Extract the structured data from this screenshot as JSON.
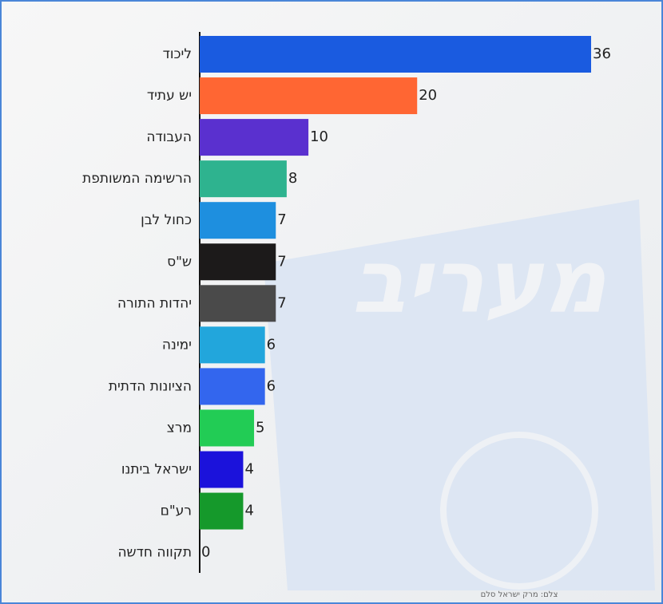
{
  "chart_data": {
    "type": "bar",
    "orientation": "horizontal",
    "categories": [
      "ליכוד",
      "יש עתיד",
      "העבודה",
      "הרשימה המשותפת",
      "כחול לבן",
      "ש\"ס",
      "יהדות התורה",
      "ימינה",
      "הציונות הדתית",
      "מרצ",
      "ישראל ביתנו",
      "רע\"ם",
      "תקווה חדשה"
    ],
    "values": [
      36,
      20,
      10,
      8,
      7,
      7,
      7,
      6,
      6,
      5,
      4,
      4,
      0
    ],
    "colors": [
      "#1a5be0",
      "#ff6633",
      "#5a30cf",
      "#2eb38f",
      "#1e8fdf",
      "#1c1a1a",
      "#4a4a4a",
      "#22a6dc",
      "#3366ee",
      "#22cc55",
      "#1b12db",
      "#15992b",
      "#3399cc"
    ],
    "watermark": "מעריב",
    "credit": "צלם: מרק ישראל סלם"
  }
}
